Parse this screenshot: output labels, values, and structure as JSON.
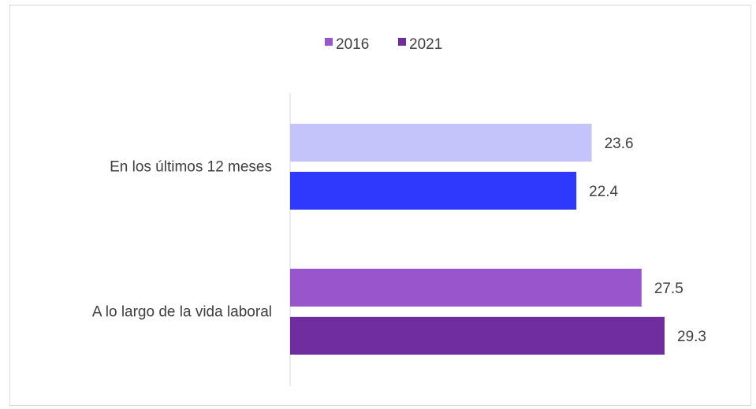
{
  "chart_data": {
    "type": "bar",
    "orientation": "horizontal",
    "categories": [
      "En los últimos 12 meses",
      "A lo largo de la vida laboral"
    ],
    "series": [
      {
        "name": "2016",
        "values": [
          23.6,
          27.5
        ]
      },
      {
        "name": "2021",
        "values": [
          22.4,
          29.3
        ]
      }
    ],
    "legend": {
      "position": "top",
      "colors": [
        "#9955cc",
        "#6f2da0"
      ]
    },
    "bar_colors": [
      [
        "#c4c3fa",
        "#2f39fd"
      ],
      [
        "#9955cc",
        "#6f2da0"
      ]
    ],
    "xlim": [
      0,
      30
    ],
    "grid": false,
    "data_labels": true
  }
}
